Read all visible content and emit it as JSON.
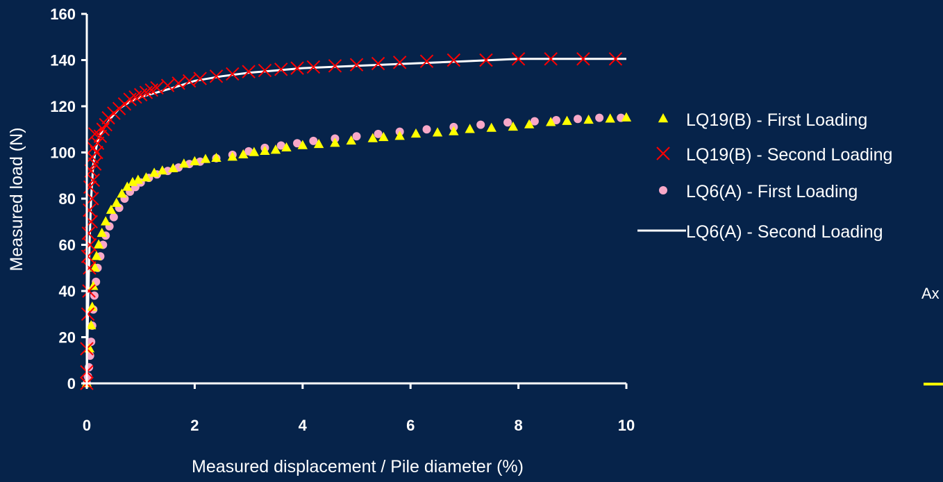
{
  "chart_data": {
    "type": "scatter",
    "title": "",
    "xlabel": "Measured displacement / Pile diameter (%)",
    "ylabel": "Measured load (N)",
    "xlim": [
      0,
      10
    ],
    "ylim": [
      0,
      160
    ],
    "xticks": [
      "0",
      "2",
      "4",
      "6",
      "8",
      "10"
    ],
    "yticks": [
      "0",
      "20",
      "40",
      "60",
      "80",
      "100",
      "120",
      "140",
      "160"
    ],
    "grid": false,
    "legend_position": "right",
    "series": [
      {
        "name": "LQ19(B) - First Loading",
        "marker": "triangle",
        "color": "#ffff00",
        "points": [
          [
            0.0,
            0
          ],
          [
            0.05,
            15
          ],
          [
            0.08,
            25
          ],
          [
            0.1,
            33
          ],
          [
            0.12,
            42
          ],
          [
            0.15,
            50
          ],
          [
            0.18,
            55
          ],
          [
            0.22,
            60
          ],
          [
            0.28,
            65
          ],
          [
            0.35,
            70
          ],
          [
            0.45,
            75
          ],
          [
            0.55,
            78
          ],
          [
            0.65,
            82
          ],
          [
            0.75,
            85
          ],
          [
            0.85,
            87
          ],
          [
            0.95,
            88
          ],
          [
            1.1,
            89
          ],
          [
            1.25,
            91
          ],
          [
            1.4,
            92
          ],
          [
            1.6,
            93
          ],
          [
            1.8,
            95
          ],
          [
            2.0,
            96
          ],
          [
            2.2,
            97
          ],
          [
            2.4,
            97.5
          ],
          [
            2.7,
            98
          ],
          [
            2.9,
            99
          ],
          [
            3.1,
            100
          ],
          [
            3.3,
            100.5
          ],
          [
            3.5,
            101
          ],
          [
            3.7,
            102
          ],
          [
            4.0,
            103
          ],
          [
            4.3,
            103.5
          ],
          [
            4.6,
            104
          ],
          [
            4.9,
            105
          ],
          [
            5.3,
            106
          ],
          [
            5.5,
            106.5
          ],
          [
            5.8,
            107
          ],
          [
            6.1,
            108
          ],
          [
            6.5,
            108.5
          ],
          [
            6.8,
            109
          ],
          [
            7.1,
            110
          ],
          [
            7.5,
            110.5
          ],
          [
            7.9,
            111
          ],
          [
            8.2,
            112
          ],
          [
            8.6,
            113
          ],
          [
            8.9,
            113.5
          ],
          [
            9.3,
            114
          ],
          [
            9.7,
            114.5
          ],
          [
            10.0,
            115
          ]
        ]
      },
      {
        "name": "LQ19(B) - Second Loading",
        "marker": "x",
        "color": "#ff0000",
        "points": [
          [
            0.0,
            0
          ],
          [
            0.0,
            5
          ],
          [
            0.0,
            15
          ],
          [
            0.02,
            30
          ],
          [
            0.04,
            40
          ],
          [
            0.05,
            50
          ],
          [
            0.02,
            55
          ],
          [
            0.06,
            60
          ],
          [
            0.03,
            65
          ],
          [
            0.08,
            70
          ],
          [
            0.05,
            75
          ],
          [
            0.1,
            80
          ],
          [
            0.06,
            85
          ],
          [
            0.12,
            88
          ],
          [
            0.08,
            92
          ],
          [
            0.15,
            95
          ],
          [
            0.1,
            98
          ],
          [
            0.18,
            100
          ],
          [
            0.12,
            102
          ],
          [
            0.2,
            104
          ],
          [
            0.25,
            107
          ],
          [
            0.15,
            108
          ],
          [
            0.3,
            110
          ],
          [
            0.35,
            112
          ],
          [
            0.4,
            115
          ],
          [
            0.5,
            117
          ],
          [
            0.6,
            119
          ],
          [
            0.7,
            121
          ],
          [
            0.8,
            123
          ],
          [
            0.9,
            124
          ],
          [
            1.0,
            125
          ],
          [
            1.1,
            126
          ],
          [
            1.2,
            127
          ],
          [
            1.3,
            128
          ],
          [
            1.5,
            129
          ],
          [
            1.7,
            130
          ],
          [
            1.9,
            131
          ],
          [
            2.1,
            132
          ],
          [
            2.4,
            133
          ],
          [
            2.7,
            134
          ],
          [
            3.0,
            135
          ],
          [
            3.3,
            135.5
          ],
          [
            3.6,
            136
          ],
          [
            3.9,
            136.5
          ],
          [
            4.2,
            137
          ],
          [
            4.6,
            137.5
          ],
          [
            5.0,
            138
          ],
          [
            5.4,
            138.5
          ],
          [
            5.8,
            139
          ],
          [
            6.3,
            139.5
          ],
          [
            6.8,
            140
          ],
          [
            7.4,
            140
          ],
          [
            8.0,
            140.5
          ],
          [
            8.6,
            140.5
          ],
          [
            9.2,
            140.5
          ],
          [
            9.8,
            140.5
          ]
        ]
      },
      {
        "name": "LQ6(A) - First Loading",
        "marker": "circle",
        "color": "#f7a8c8",
        "points": [
          [
            0.0,
            0
          ],
          [
            0.02,
            3
          ],
          [
            0.04,
            7
          ],
          [
            0.06,
            12
          ],
          [
            0.08,
            18
          ],
          [
            0.1,
            25
          ],
          [
            0.12,
            32
          ],
          [
            0.14,
            38
          ],
          [
            0.17,
            44
          ],
          [
            0.2,
            50
          ],
          [
            0.25,
            55
          ],
          [
            0.3,
            60
          ],
          [
            0.35,
            64
          ],
          [
            0.42,
            68
          ],
          [
            0.5,
            72
          ],
          [
            0.6,
            76
          ],
          [
            0.7,
            80
          ],
          [
            0.8,
            83
          ],
          [
            0.9,
            85
          ],
          [
            1.0,
            87
          ],
          [
            1.15,
            89
          ],
          [
            1.3,
            90.5
          ],
          [
            1.5,
            92
          ],
          [
            1.7,
            93.5
          ],
          [
            1.9,
            95
          ],
          [
            2.1,
            96
          ],
          [
            2.4,
            97.5
          ],
          [
            2.7,
            99
          ],
          [
            3.0,
            100.5
          ],
          [
            3.3,
            102
          ],
          [
            3.6,
            103
          ],
          [
            3.9,
            104
          ],
          [
            4.2,
            105
          ],
          [
            4.6,
            106
          ],
          [
            5.0,
            107
          ],
          [
            5.4,
            108
          ],
          [
            5.8,
            109
          ],
          [
            6.3,
            110
          ],
          [
            6.8,
            111
          ],
          [
            7.3,
            112
          ],
          [
            7.8,
            113
          ],
          [
            8.3,
            113.5
          ],
          [
            8.7,
            114
          ],
          [
            9.1,
            114.5
          ],
          [
            9.5,
            115
          ],
          [
            9.9,
            115
          ]
        ]
      },
      {
        "name": "LQ6(A) - Second Loading",
        "marker": "line",
        "color": "#ffffff",
        "points": [
          [
            0.0,
            0
          ],
          [
            0.02,
            30
          ],
          [
            0.05,
            60
          ],
          [
            0.08,
            80
          ],
          [
            0.12,
            95
          ],
          [
            0.2,
            105
          ],
          [
            0.3,
            110
          ],
          [
            0.45,
            115
          ],
          [
            0.6,
            119
          ],
          [
            0.8,
            122
          ],
          [
            1.0,
            124
          ],
          [
            1.3,
            126
          ],
          [
            1.6,
            128
          ],
          [
            2.0,
            131
          ],
          [
            2.5,
            133
          ],
          [
            3.0,
            134.5
          ],
          [
            3.5,
            135.5
          ],
          [
            4.0,
            136.5
          ],
          [
            5.0,
            137.5
          ],
          [
            6.0,
            138.5
          ],
          [
            7.0,
            139.5
          ],
          [
            8.0,
            140.5
          ],
          [
            9.0,
            140.5
          ],
          [
            10.0,
            140.5
          ]
        ]
      }
    ]
  },
  "stray_text": "Ax",
  "stray_dash_color": "#ffff00"
}
